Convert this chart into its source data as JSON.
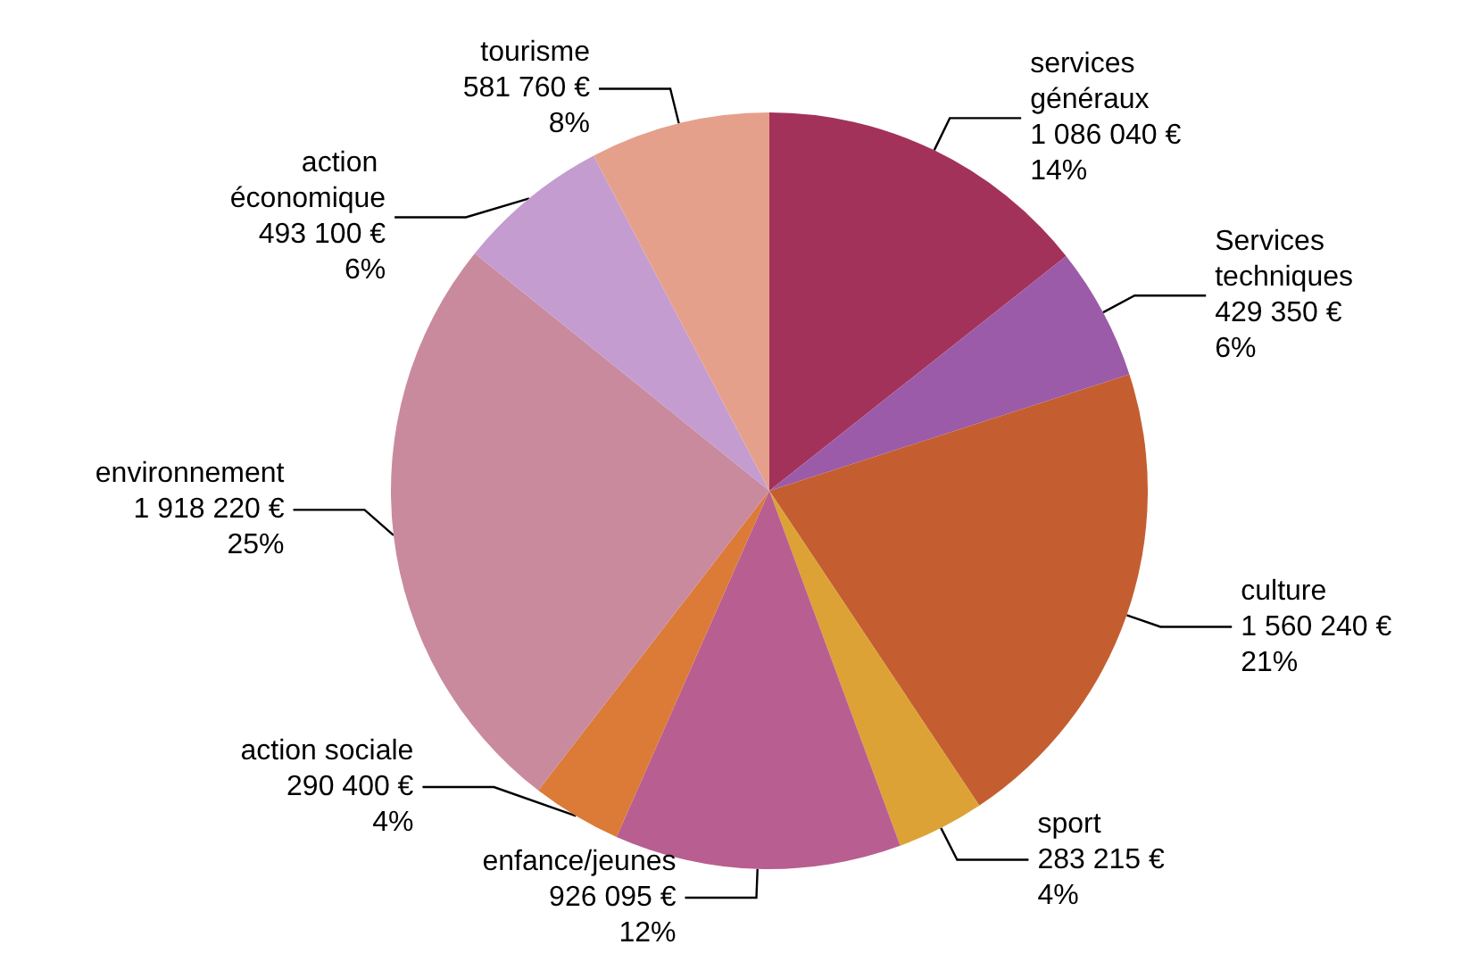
{
  "chart_data": {
    "type": "pie",
    "categories": [
      "services généraux",
      "Services techniques",
      "culture",
      "sport",
      "enfance/jeunes",
      "action sociale",
      "environnement",
      "action économique",
      "tourisme"
    ],
    "values": [
      1086040,
      429350,
      1560240,
      283215,
      926095,
      290400,
      1918220,
      493100,
      581760
    ],
    "value_labels": [
      "1 086 040 €\n14%",
      "429 350 €\n6%",
      "1 560 240 €\n21%",
      "283 215 €\n4%",
      "926 095 €\n12%",
      "290 400 €\n4%",
      "1 918 220 €\n25%",
      "493 100 €\n6%",
      "581 760 €\n8%"
    ],
    "colors": [
      "#a3325a",
      "#9b5ba8",
      "#c45e30",
      "#dca235",
      "#b85e90",
      "#dc7a38",
      "#c98a9e",
      "#c49cd0",
      "#e5a08c"
    ]
  }
}
